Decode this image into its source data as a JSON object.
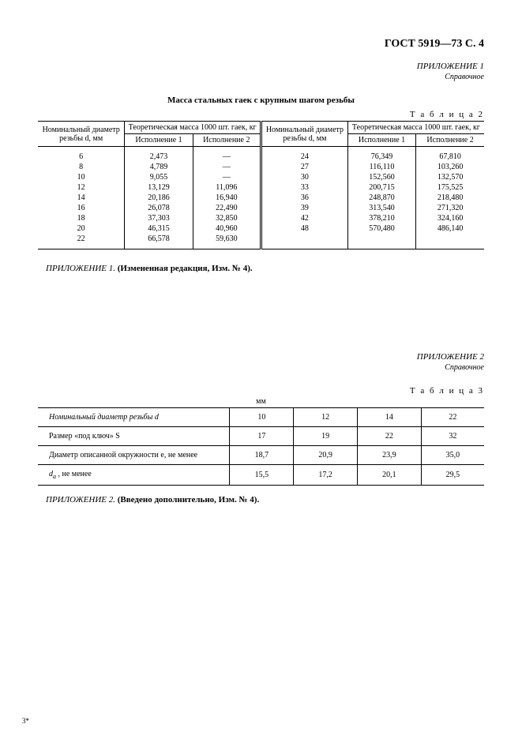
{
  "header": "ГОСТ 5919—73 С. 4",
  "app1": {
    "title": "ПРИЛОЖЕНИЕ 1",
    "sub": "Справочное"
  },
  "t2title": "Масса стальных гаек с крупным шагом резьбы",
  "t2label": "Т а б л и ц а 2",
  "t2head": {
    "nomdiam": "Номинальный диаметр резьбы d, мм",
    "mass": "Теоретическая масса 1000 шт. гаек, кг",
    "isp1": "Исполнение 1",
    "isp2": "Исполнение 2"
  },
  "t2left": [
    {
      "d": "6",
      "m1": "2,473",
      "m2": "—"
    },
    {
      "d": "8",
      "m1": "4,789",
      "m2": "—"
    },
    {
      "d": "10",
      "m1": "9,055",
      "m2": "—"
    },
    {
      "d": "12",
      "m1": "13,129",
      "m2": "11,096"
    },
    {
      "d": "14",
      "m1": "20,186",
      "m2": "16,940"
    },
    {
      "d": "16",
      "m1": "26,078",
      "m2": "22,490"
    },
    {
      "d": "18",
      "m1": "37,303",
      "m2": "32,850"
    },
    {
      "d": "20",
      "m1": "46,315",
      "m2": "40,960"
    },
    {
      "d": "22",
      "m1": "66,578",
      "m2": "59,630"
    }
  ],
  "t2right": [
    {
      "d": "24",
      "m1": "76,349",
      "m2": "67,810"
    },
    {
      "d": "27",
      "m1": "116,110",
      "m2": "103,260"
    },
    {
      "d": "30",
      "m1": "152,560",
      "m2": "132,570"
    },
    {
      "d": "33",
      "m1": "200,715",
      "m2": "175,525"
    },
    {
      "d": "36",
      "m1": "248,870",
      "m2": "218,480"
    },
    {
      "d": "39",
      "m1": "313,540",
      "m2": "271,320"
    },
    {
      "d": "42",
      "m1": "378,210",
      "m2": "324,160"
    },
    {
      "d": "48",
      "m1": "570,480",
      "m2": "486,140"
    }
  ],
  "note1_a": "ПРИЛОЖЕНИЕ 1.",
  "note1_b": "(Измененная редакция, Изм. № 4).",
  "app2": {
    "title": "ПРИЛОЖЕНИЕ 2",
    "sub": "Справочное"
  },
  "t3label": "Т а б л и ц а 3",
  "mm": "мм",
  "t3rows": {
    "r1": {
      "label": "Номинальный диаметр резьбы d",
      "v": [
        "10",
        "12",
        "14",
        "22"
      ]
    },
    "r2": {
      "label": "Размер «под ключ» S",
      "v": [
        "17",
        "19",
        "22",
        "32"
      ]
    },
    "r3": {
      "label": "Диаметр описанной окружности e, не менее",
      "v": [
        "18,7",
        "20,9",
        "23,9",
        "35,0"
      ]
    },
    "r4": {
      "label_pre": "d",
      "label_sub": "a",
      "label_post": " , не менее",
      "v": [
        "15,5",
        "17,2",
        "20,1",
        "29,5"
      ]
    }
  },
  "note2_a": "ПРИЛОЖЕНИЕ 2.",
  "note2_b": "(Введено дополнительно, Изм. № 4).",
  "footer": "3*"
}
